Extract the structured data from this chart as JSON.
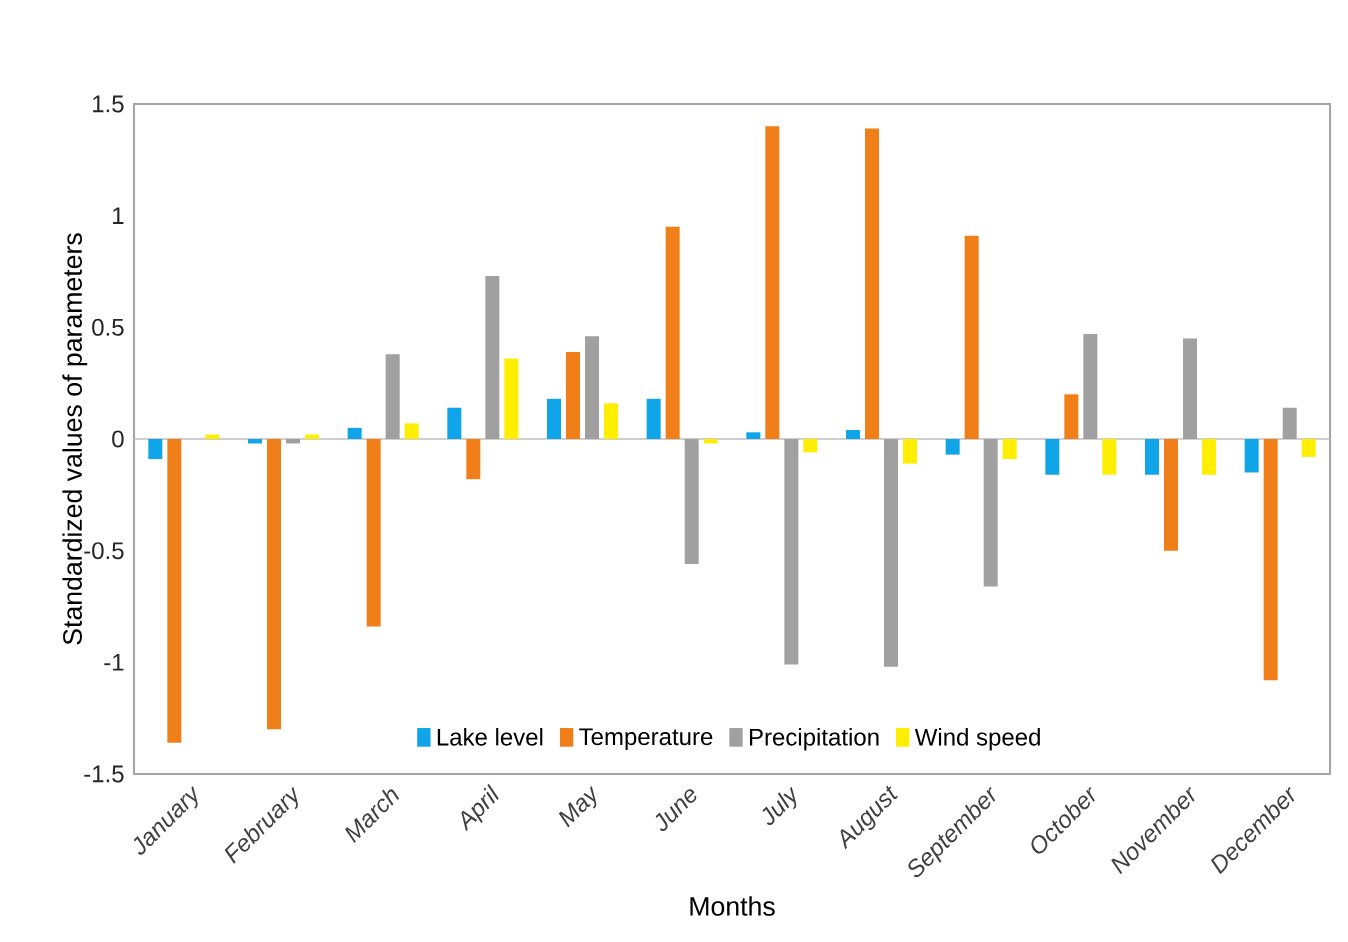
{
  "chart_data": {
    "type": "bar",
    "xlabel": "Months",
    "ylabel": "Standardized values of parameters",
    "categories": [
      "January",
      "February",
      "March",
      "April",
      "May",
      "June",
      "July",
      "August",
      "September",
      "October",
      "November",
      "December"
    ],
    "series": [
      {
        "name": "Lake level",
        "color": "#10a5e8",
        "values": [
          -0.09,
          -0.02,
          0.05,
          0.14,
          0.18,
          0.18,
          0.03,
          0.04,
          -0.07,
          -0.16,
          -0.16,
          -0.15
        ]
      },
      {
        "name": "Temperature",
        "color": "#f07f1a",
        "values": [
          -1.36,
          -1.3,
          -0.84,
          -0.18,
          0.39,
          0.95,
          1.4,
          1.39,
          0.91,
          0.2,
          -0.5,
          -1.08
        ]
      },
      {
        "name": "Precipitation",
        "color": "#a0a0a0",
        "values": [
          null,
          -0.02,
          0.38,
          0.73,
          0.46,
          -0.56,
          -1.01,
          -1.02,
          -0.66,
          0.47,
          0.45,
          0.14
        ]
      },
      {
        "name": "Wind speed",
        "color": "#ffee00",
        "values": [
          0.02,
          0.02,
          0.07,
          0.36,
          0.16,
          -0.02,
          -0.06,
          -0.11,
          -0.09,
          -0.16,
          -0.16,
          -0.08
        ]
      }
    ],
    "ylim": [
      -1.5,
      1.5
    ],
    "yticks": [
      -1.5,
      -1,
      -0.5,
      0,
      0.5,
      1,
      1.5
    ],
    "legend": "bottom"
  }
}
